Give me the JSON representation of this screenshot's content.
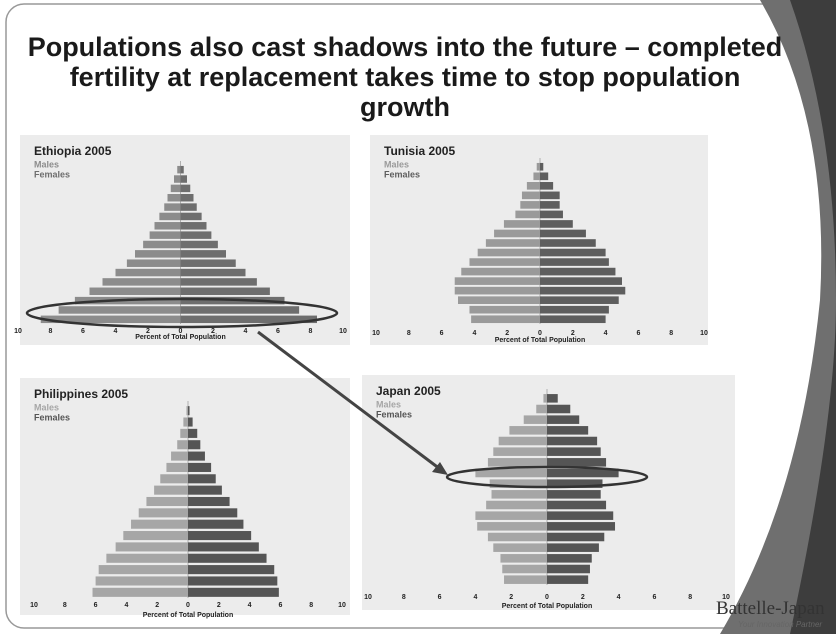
{
  "slide_title": "Populations also cast shadows into the future – completed fertility at replacement takes time to stop population growth",
  "logo": {
    "name": "Battelle-Japan",
    "tagline": "Your Innovation Partner"
  },
  "chart_data": [
    {
      "type": "pyramid",
      "title": "Ethiopia 2005",
      "x_label": "Percent of Total Population",
      "categories": [
        null,
        null,
        null,
        null,
        null,
        null,
        null,
        null,
        null,
        null,
        null,
        null,
        null,
        null,
        null,
        null,
        null
      ],
      "series": [
        {
          "name": "Males",
          "color": "#8c8c8c",
          "values": [
            8.6,
            7.5,
            6.5,
            5.6,
            4.8,
            4.0,
            3.3,
            2.8,
            2.3,
            1.9,
            1.6,
            1.3,
            1.0,
            0.8,
            0.6,
            0.4,
            0.2
          ]
        },
        {
          "name": "Females",
          "color": "#6e6e6e",
          "values": [
            8.4,
            7.3,
            6.4,
            5.5,
            4.7,
            4.0,
            3.4,
            2.8,
            2.3,
            1.9,
            1.6,
            1.3,
            1.0,
            0.8,
            0.6,
            0.4,
            0.2
          ]
        }
      ],
      "xlim": [
        -10,
        10
      ],
      "xticks": [
        {
          "value": -10,
          "label": "10"
        },
        {
          "value": -8,
          "label": "8"
        },
        {
          "value": -6,
          "label": "6"
        },
        {
          "value": -4,
          "label": "4"
        },
        {
          "value": -2,
          "label": "2"
        },
        0,
        2,
        4,
        6,
        8,
        10
      ]
    },
    {
      "type": "pyramid",
      "title": "Tunisia 2005",
      "x_label": "Percent of Total Population",
      "categories": [
        null,
        null,
        null,
        null,
        null,
        null,
        null,
        null,
        null,
        null,
        null,
        null,
        null,
        null,
        null,
        null,
        null
      ],
      "series": [
        {
          "name": "Males",
          "color": "#9a9a9a",
          "values": [
            4.2,
            4.3,
            5.0,
            5.2,
            5.2,
            4.8,
            4.3,
            3.8,
            3.3,
            2.8,
            2.2,
            1.5,
            1.2,
            1.1,
            0.8,
            0.4,
            0.2
          ]
        },
        {
          "name": "Females",
          "color": "#5e5e5e",
          "values": [
            4.0,
            4.2,
            4.8,
            5.2,
            5.0,
            4.6,
            4.2,
            4.0,
            3.4,
            2.8,
            2.0,
            1.4,
            1.2,
            1.2,
            0.8,
            0.5,
            0.2
          ]
        }
      ],
      "xlim": [
        -10,
        10
      ],
      "xticks": [
        {
          "value": -10,
          "label": "10"
        },
        {
          "value": -8,
          "label": "8"
        },
        {
          "value": -6,
          "label": "6"
        },
        {
          "value": -4,
          "label": "4"
        },
        {
          "value": -2,
          "label": "2"
        },
        0,
        2,
        4,
        6,
        8,
        10
      ]
    },
    {
      "type": "pyramid",
      "title": "Philippines 2005",
      "x_label": "Percent of Total Population",
      "categories": [
        null,
        null,
        null,
        null,
        null,
        null,
        null,
        null,
        null,
        null,
        null,
        null,
        null,
        null,
        null,
        null,
        null
      ],
      "series": [
        {
          "name": "Males",
          "color": "#a6a6a6",
          "values": [
            6.2,
            6.0,
            5.8,
            5.3,
            4.7,
            4.2,
            3.7,
            3.2,
            2.7,
            2.2,
            1.8,
            1.4,
            1.1,
            0.7,
            0.5,
            0.3,
            0.1
          ]
        },
        {
          "name": "Females",
          "color": "#555555",
          "values": [
            5.9,
            5.8,
            5.6,
            5.1,
            4.6,
            4.1,
            3.6,
            3.2,
            2.7,
            2.2,
            1.8,
            1.5,
            1.1,
            0.8,
            0.6,
            0.3,
            0.1
          ]
        }
      ],
      "xlim": [
        -10,
        10
      ],
      "xticks": [
        {
          "value": -10,
          "label": "10"
        },
        {
          "value": -8,
          "label": "8"
        },
        {
          "value": -6,
          "label": "6"
        },
        {
          "value": -4,
          "label": "4"
        },
        {
          "value": -2,
          "label": "2"
        },
        0,
        2,
        4,
        6,
        8,
        10
      ]
    },
    {
      "type": "pyramid",
      "title": "Japan 2005",
      "x_label": "Percent of Total Population",
      "categories": [
        null,
        null,
        null,
        null,
        null,
        null,
        null,
        null,
        null,
        null,
        null,
        null,
        null,
        null,
        null,
        null,
        null,
        null
      ],
      "series": [
        {
          "name": "Males",
          "color": "#a6a6a6",
          "values": [
            2.4,
            2.5,
            2.6,
            3.0,
            3.3,
            3.9,
            4.0,
            3.4,
            3.1,
            3.2,
            4.0,
            3.3,
            3.0,
            2.7,
            2.1,
            1.3,
            0.6,
            0.2
          ]
        },
        {
          "name": "Females",
          "color": "#555555",
          "values": [
            2.3,
            2.4,
            2.5,
            2.9,
            3.2,
            3.8,
            3.7,
            3.3,
            3.0,
            3.1,
            4.0,
            3.3,
            3.0,
            2.8,
            2.3,
            1.8,
            1.3,
            0.6
          ]
        }
      ],
      "xlim": [
        -10,
        10
      ],
      "xticks": [
        {
          "value": -10,
          "label": "10"
        },
        {
          "value": -8,
          "label": "8"
        },
        {
          "value": -6,
          "label": "6"
        },
        {
          "value": -4,
          "label": "4"
        },
        {
          "value": -2,
          "label": "2"
        },
        0,
        2,
        4,
        6,
        8,
        10
      ]
    }
  ]
}
